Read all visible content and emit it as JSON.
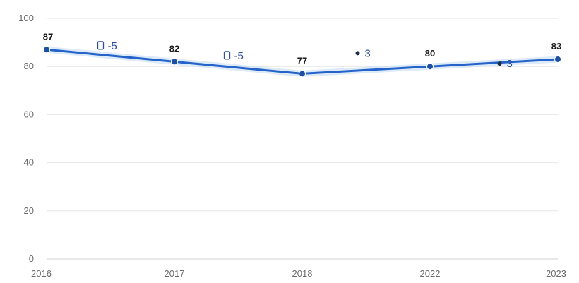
{
  "colors": {
    "line": "#2563c9",
    "point": "#1e4fa3",
    "change_text": "#2f4f9a",
    "change_dot": "#1f2a44"
  },
  "chart_data": {
    "type": "line",
    "title": "",
    "xlabel": "",
    "ylabel": "",
    "categories": [
      "2016",
      "2017",
      "2018",
      "2022",
      "2023"
    ],
    "series": [
      {
        "values": [
          87,
          82,
          77,
          80,
          83
        ]
      }
    ],
    "data_labels": [
      "87",
      "82",
      "77",
      "80",
      "83"
    ],
    "ylim": [
      0,
      100
    ],
    "yticks": [
      0,
      20,
      40,
      60,
      80,
      100
    ],
    "grid": true,
    "legend": "none",
    "annotations": [
      {
        "between": [
          "2016",
          "2017"
        ],
        "marker": "square",
        "text": "-5"
      },
      {
        "between": [
          "2017",
          "2018"
        ],
        "marker": "square",
        "text": "-5"
      },
      {
        "between": [
          "2018",
          "2022"
        ],
        "marker": "dot",
        "text": "3"
      },
      {
        "between": [
          "2022",
          "2023"
        ],
        "marker": "dot",
        "text": "3"
      }
    ]
  }
}
